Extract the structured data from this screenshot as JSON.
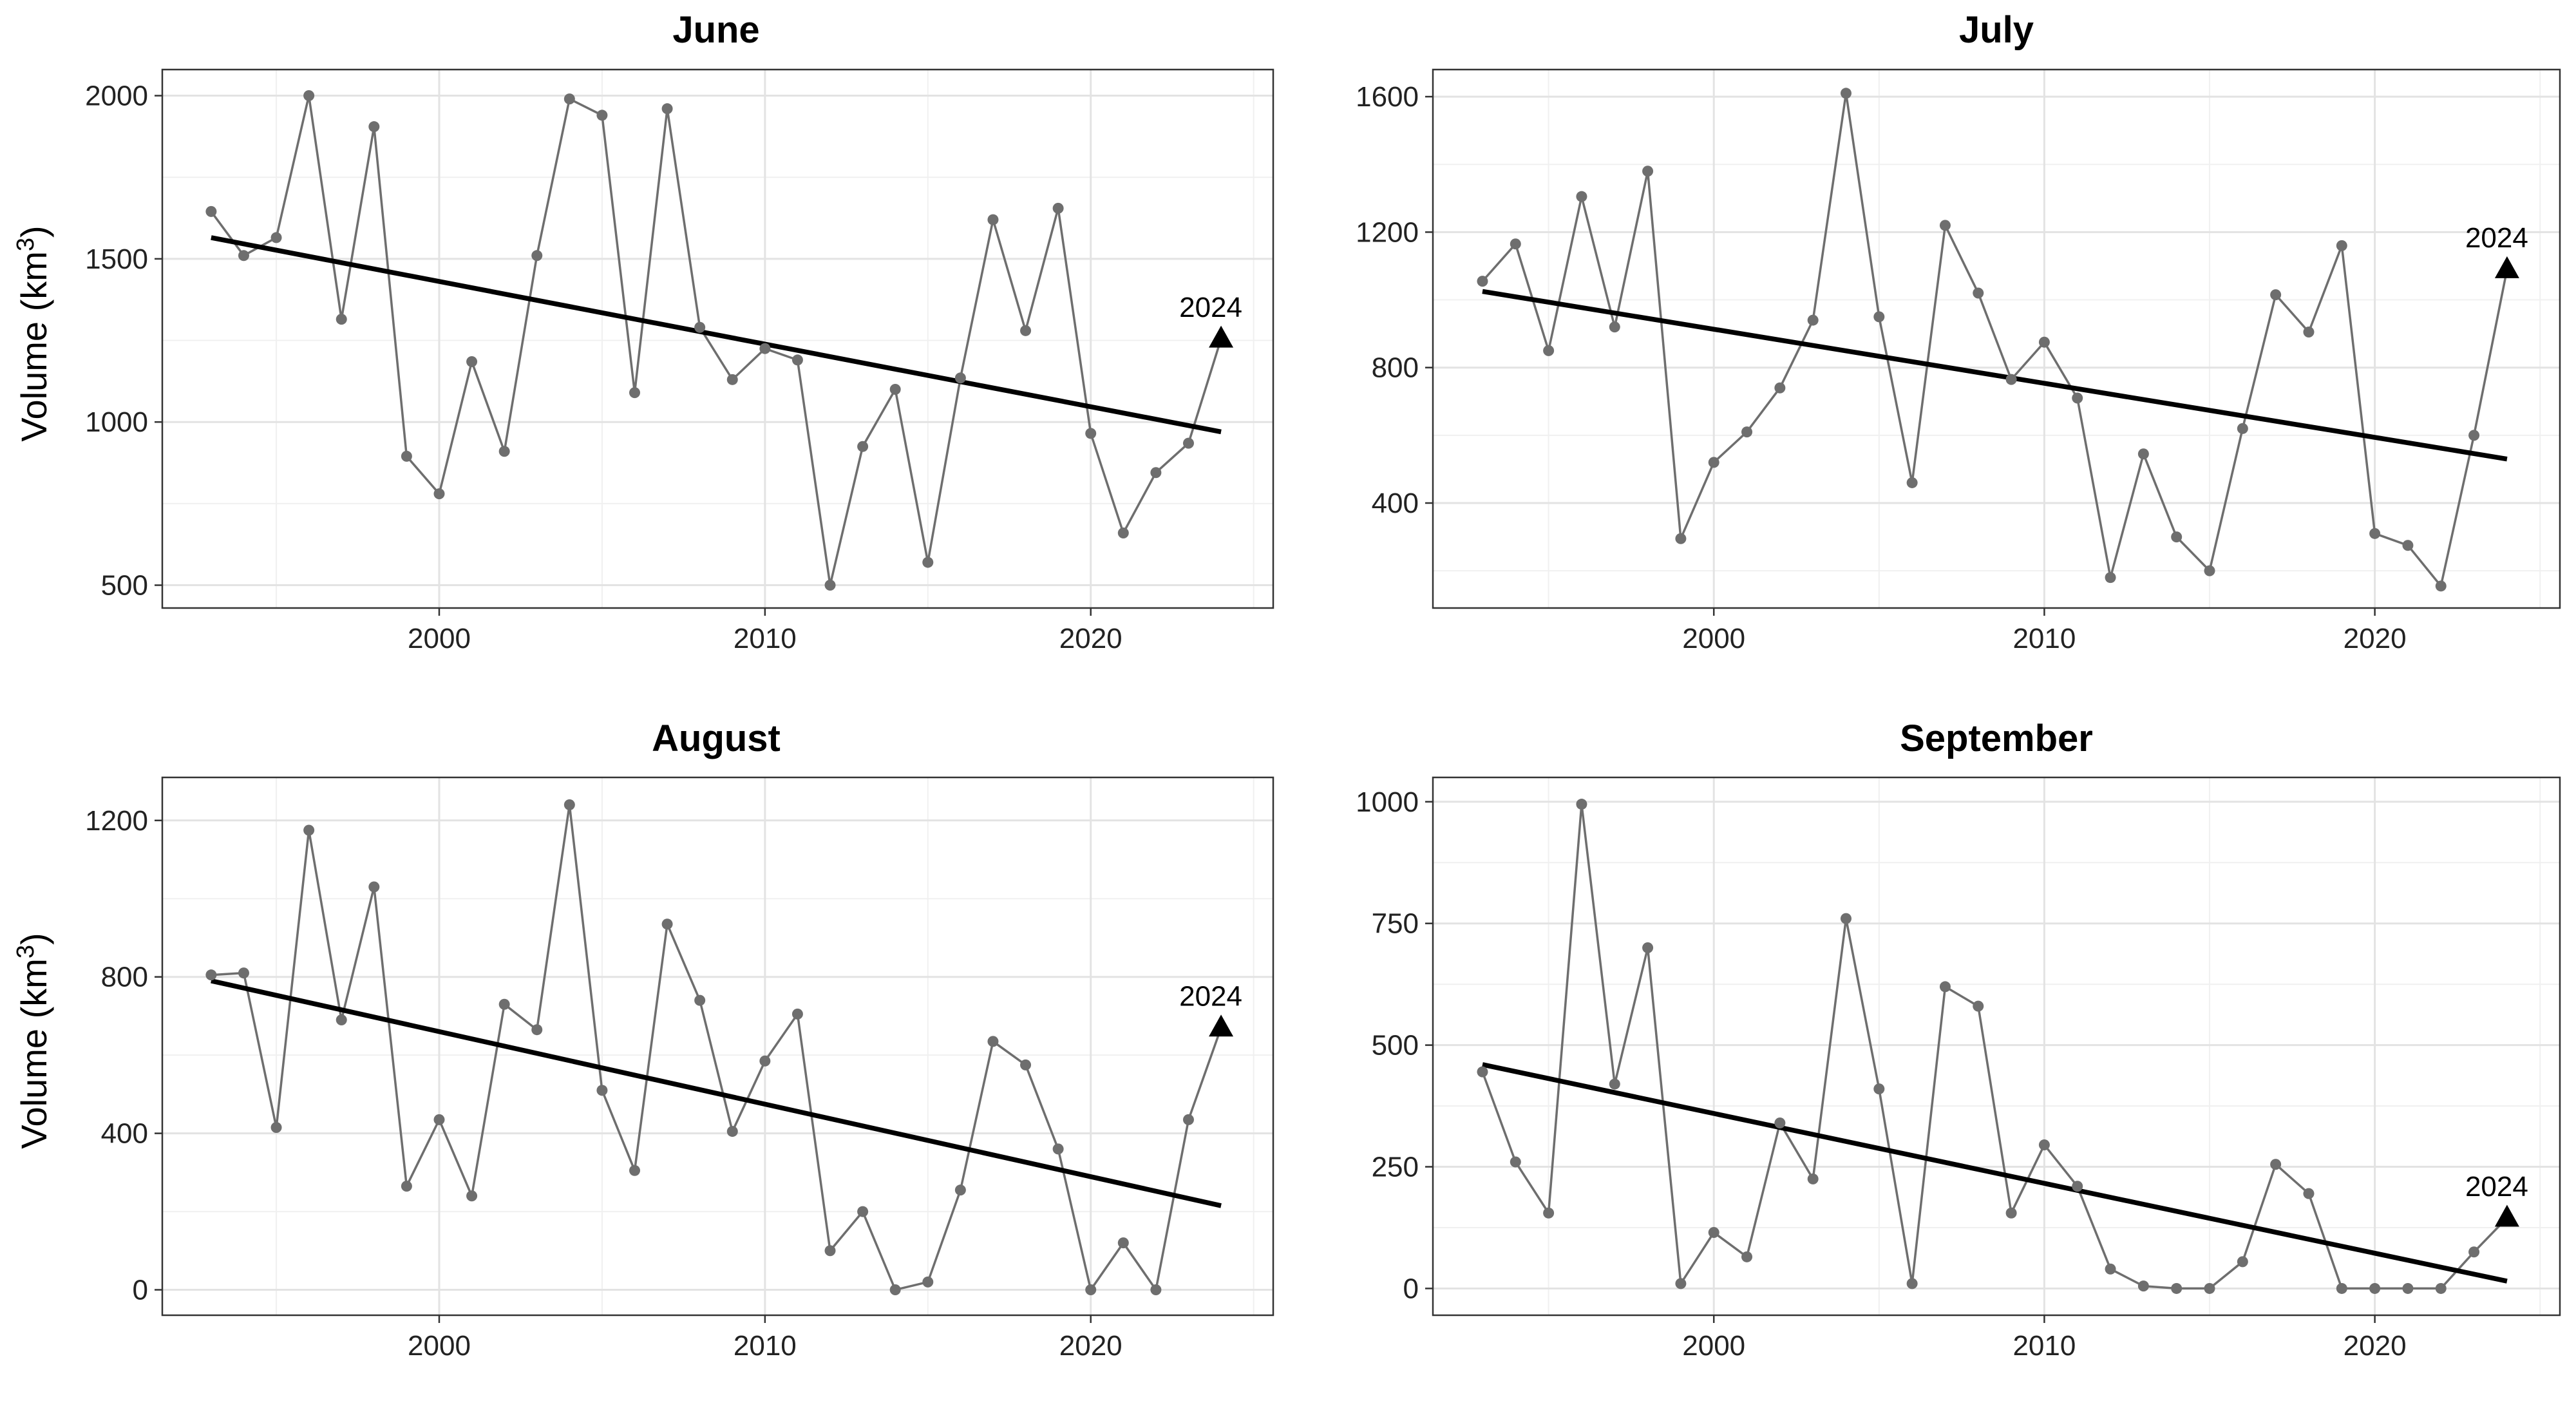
{
  "figure": {
    "ylabel": "Volume  (km",
    "ylabel_sup": "3",
    "ylabel_close": ")"
  },
  "chart_data": [
    {
      "type": "line",
      "title": "June",
      "xlabel": "",
      "ylabel": "Volume (km³)",
      "xlim": [
        1991.5,
        2025.6
      ],
      "ylim": [
        430,
        2080
      ],
      "xticks": [
        2000,
        2010,
        2020
      ],
      "yticks": [
        500,
        1000,
        1500,
        2000
      ],
      "grid": true,
      "series": [
        {
          "x": [
            1993,
            1994,
            1995,
            1996,
            1997,
            1998,
            1999,
            2000,
            2001,
            2002,
            2003,
            2004,
            2005,
            2006,
            2007,
            2008,
            2009,
            2010,
            2011,
            2012,
            2013,
            2014,
            2015,
            2016,
            2017,
            2018,
            2019,
            2020,
            2021,
            2022,
            2023,
            2024
          ],
          "y": [
            1645,
            1510,
            1565,
            2000,
            1315,
            1905,
            895,
            780,
            1185,
            910,
            1510,
            1990,
            1940,
            1090,
            1960,
            1290,
            1130,
            1225,
            1190,
            500,
            925,
            1100,
            570,
            1135,
            1620,
            1280,
            1655,
            965,
            660,
            845,
            935,
            1255
          ]
        }
      ],
      "trend": {
        "x": [
          1993,
          2024
        ],
        "y": [
          1565,
          970
        ]
      },
      "highlight": {
        "x": 2024,
        "y": 1255,
        "label": "2024"
      }
    },
    {
      "type": "line",
      "title": "July",
      "xlabel": "",
      "ylabel": "",
      "xlim": [
        1991.5,
        2025.6
      ],
      "ylim": [
        90,
        1680
      ],
      "xticks": [
        2000,
        2010,
        2020
      ],
      "yticks": [
        400,
        800,
        1200,
        1600
      ],
      "grid": true,
      "series": [
        {
          "x": [
            1993,
            1994,
            1995,
            1996,
            1997,
            1998,
            1999,
            2000,
            2001,
            2002,
            2003,
            2004,
            2005,
            2006,
            2007,
            2008,
            2009,
            2010,
            2011,
            2012,
            2013,
            2014,
            2015,
            2016,
            2017,
            2018,
            2019,
            2020,
            2021,
            2022,
            2023,
            2024
          ],
          "y": [
            1055,
            1165,
            850,
            1305,
            920,
            1380,
            295,
            520,
            610,
            740,
            940,
            1610,
            950,
            460,
            1220,
            1020,
            765,
            875,
            710,
            180,
            545,
            300,
            200,
            620,
            1015,
            905,
            1160,
            310,
            275,
            155,
            600,
            1090
          ]
        }
      ],
      "trend": {
        "x": [
          1993,
          2024
        ],
        "y": [
          1025,
          530
        ]
      },
      "highlight": {
        "x": 2024,
        "y": 1090,
        "label": "2024"
      }
    },
    {
      "type": "line",
      "title": "August",
      "xlabel": "",
      "ylabel": "Volume (km³)",
      "xlim": [
        1991.5,
        2025.6
      ],
      "ylim": [
        -65,
        1310
      ],
      "xticks": [
        2000,
        2010,
        2020
      ],
      "yticks": [
        0,
        400,
        800,
        1200
      ],
      "grid": true,
      "series": [
        {
          "x": [
            1993,
            1994,
            1995,
            1996,
            1997,
            1998,
            1999,
            2000,
            2001,
            2002,
            2003,
            2004,
            2005,
            2006,
            2007,
            2008,
            2009,
            2010,
            2011,
            2012,
            2013,
            2014,
            2015,
            2016,
            2017,
            2018,
            2019,
            2020,
            2021,
            2022,
            2023,
            2024
          ],
          "y": [
            805,
            810,
            415,
            1175,
            690,
            1030,
            265,
            435,
            240,
            730,
            665,
            1240,
            510,
            305,
            935,
            740,
            405,
            585,
            705,
            100,
            200,
            0,
            20,
            255,
            635,
            575,
            360,
            0,
            120,
            0,
            435,
            670
          ]
        }
      ],
      "trend": {
        "x": [
          1993,
          2024
        ],
        "y": [
          790,
          215
        ]
      },
      "highlight": {
        "x": 2024,
        "y": 670,
        "label": "2024"
      }
    },
    {
      "type": "line",
      "title": "September",
      "xlabel": "",
      "ylabel": "",
      "xlim": [
        1991.5,
        2025.6
      ],
      "ylim": [
        -55,
        1050
      ],
      "xticks": [
        2000,
        2010,
        2020
      ],
      "yticks": [
        0,
        250,
        500,
        750,
        1000
      ],
      "grid": true,
      "series": [
        {
          "x": [
            1993,
            1994,
            1995,
            1996,
            1997,
            1998,
            1999,
            2000,
            2001,
            2002,
            2003,
            2004,
            2005,
            2006,
            2007,
            2008,
            2009,
            2010,
            2011,
            2012,
            2013,
            2014,
            2015,
            2016,
            2017,
            2018,
            2019,
            2020,
            2021,
            2022,
            2023,
            2024
          ],
          "y": [
            445,
            260,
            155,
            995,
            420,
            700,
            10,
            115,
            65,
            340,
            225,
            760,
            410,
            10,
            620,
            580,
            155,
            295,
            210,
            40,
            5,
            0,
            0,
            55,
            255,
            195,
            0,
            0,
            0,
            0,
            75,
            145
          ]
        }
      ],
      "trend": {
        "x": [
          1993,
          2024
        ],
        "y": [
          460,
          15
        ]
      },
      "highlight": {
        "x": 2024,
        "y": 145,
        "label": "2024"
      }
    }
  ]
}
